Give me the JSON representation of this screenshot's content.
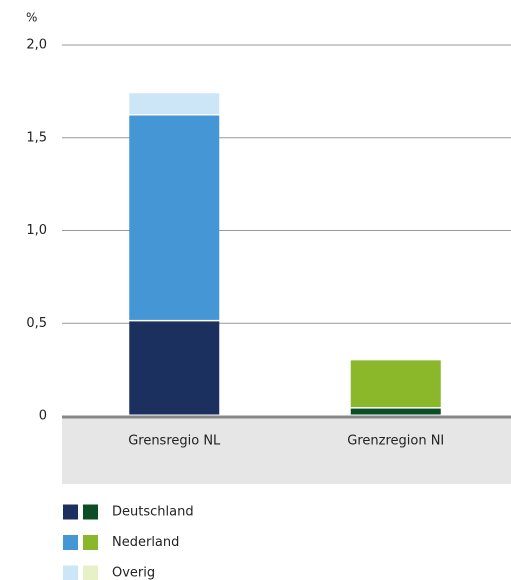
{
  "chart_data": {
    "type": "stacked_bar",
    "y_label": "%",
    "categories": [
      "Grensregio NL",
      "Grenzregion NI"
    ],
    "series": [
      {
        "name": "Deutschland",
        "colors": [
          "#1c3060",
          "#0a4d26"
        ],
        "values": [
          0.51,
          0.04
        ]
      },
      {
        "name": "Nederland",
        "colors": [
          "#4496d4",
          "#8ab82a"
        ],
        "values": [
          1.11,
          0.26
        ]
      },
      {
        "name": "Overig",
        "colors": [
          "#cce6f7",
          "#e8f0c8"
        ],
        "values": [
          0.12,
          0
        ]
      }
    ],
    "ylim": [
      0,
      2
    ],
    "yticks": [
      0,
      {
        "value": 0.5,
        "label": "0,5"
      },
      {
        "value": 1,
        "label": "1,0"
      },
      {
        "value": 1.5,
        "label": "1,5"
      },
      {
        "value": 2,
        "label": "2,0"
      }
    ],
    "grid": true
  }
}
